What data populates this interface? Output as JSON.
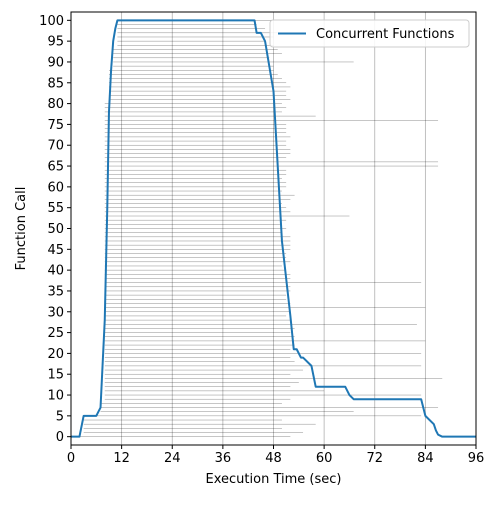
{
  "chart_data": {
    "type": "line",
    "title": "",
    "xlabel": "Execution Time (sec)",
    "ylabel": "Function Call",
    "xlim": [
      0,
      96
    ],
    "ylim": [
      -2,
      102
    ],
    "xticks": [
      0,
      12,
      24,
      36,
      48,
      60,
      72,
      84,
      96
    ],
    "yticks": [
      0,
      5,
      10,
      15,
      20,
      25,
      30,
      35,
      40,
      45,
      50,
      55,
      60,
      65,
      70,
      75,
      80,
      85,
      90,
      95,
      100
    ],
    "grid": "vertical",
    "legend": {
      "placement": "top-right",
      "entries": [
        "Concurrent Functions"
      ]
    },
    "colors": {
      "series": "#1f77b4",
      "interval_lines": "#000000",
      "grid": "#b0b0b0"
    },
    "series": [
      {
        "name": "Concurrent Functions",
        "x": [
          0,
          2,
          3,
          6,
          7,
          8,
          8.6,
          9,
          9.5,
          10,
          10.5,
          11,
          24,
          36,
          43.5,
          44,
          45,
          46,
          47,
          48,
          49,
          50,
          51,
          52,
          52.8,
          53.5,
          54.5,
          55,
          57,
          58,
          60,
          65,
          66,
          67,
          70,
          75,
          80,
          83,
          84,
          86,
          86.5,
          87,
          88,
          96
        ],
        "y": [
          0,
          0,
          5,
          5,
          7,
          28,
          55,
          78,
          88,
          95,
          98,
          100,
          100,
          100,
          100,
          97,
          97,
          95,
          89,
          83,
          65,
          47,
          38,
          29,
          21,
          21,
          19,
          19,
          17,
          12,
          12,
          12,
          10,
          9,
          9,
          9,
          9,
          9,
          5,
          3,
          1.5,
          0.5,
          0,
          0
        ]
      }
    ],
    "intervals": {
      "description": "Each function call i (0-100) is drawn as a thin horizontal line from its start to end time.",
      "starts": [
        2,
        3,
        3,
        3,
        3,
        3,
        7,
        7,
        7,
        8,
        8,
        8,
        8,
        8,
        8,
        8,
        8,
        8,
        8,
        8,
        8,
        8,
        8,
        8,
        8,
        8,
        8,
        8,
        8,
        8,
        8,
        8,
        8,
        8,
        8,
        8,
        8,
        8,
        8,
        8,
        8,
        8,
        8,
        8,
        8,
        8,
        8,
        8,
        8,
        8,
        8,
        8,
        8,
        8,
        8,
        8,
        8,
        8,
        8,
        8,
        8,
        8,
        8,
        8,
        8,
        8,
        8,
        8,
        8,
        8,
        8,
        8,
        8,
        8,
        8,
        8,
        8,
        8,
        8,
        8,
        8,
        9,
        9,
        9,
        9,
        9,
        9,
        9,
        9,
        10,
        10,
        10,
        10,
        10,
        11,
        11,
        11,
        11,
        11,
        11,
        11
      ],
      "ends": [
        52,
        55,
        50,
        58,
        50,
        83,
        67,
        87,
        50,
        52,
        83,
        60,
        52,
        54,
        88,
        52,
        55,
        83,
        53,
        52,
        83,
        52,
        53,
        84,
        53,
        52,
        53,
        82,
        52,
        51,
        52,
        84,
        52,
        51,
        51,
        52,
        52,
        83,
        52,
        52,
        51,
        50,
        52,
        51,
        51,
        52,
        52,
        52,
        52,
        50,
        51,
        50,
        51,
        66,
        52,
        51,
        50,
        52,
        53,
        50,
        51,
        51,
        50,
        51,
        51,
        87,
        87,
        51,
        52,
        52,
        51,
        51,
        52,
        51,
        51,
        51,
        87,
        58,
        50,
        51,
        50,
        52,
        51,
        51,
        52,
        51,
        50,
        49,
        48,
        48,
        67,
        47,
        50,
        49,
        48,
        46,
        48,
        49,
        46,
        44,
        48
      ]
    }
  }
}
